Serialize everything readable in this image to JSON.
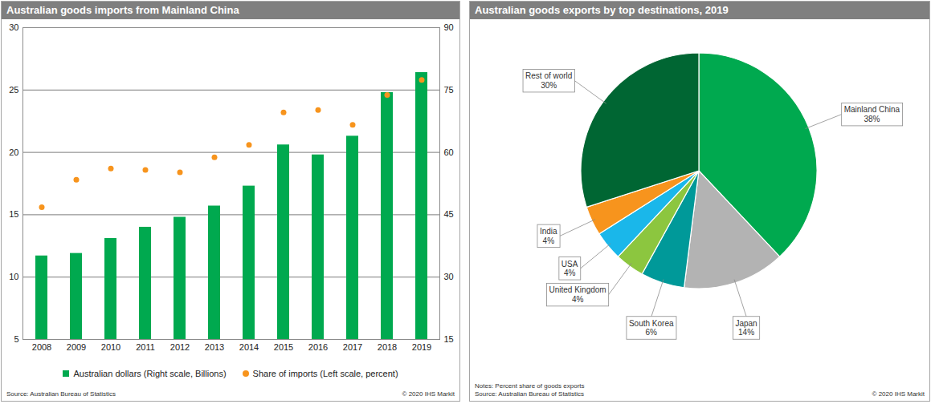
{
  "chart_data": [
    {
      "type": "bar",
      "title": "Australian goods imports from Mainland China",
      "categories": [
        "2008",
        "2009",
        "2010",
        "2011",
        "2012",
        "2013",
        "2014",
        "2015",
        "2016",
        "2017",
        "2018",
        "2019"
      ],
      "series": [
        {
          "name": "Australian dollars (Right scale, Billions)",
          "type": "bar",
          "axis": "y2",
          "color": "#00a94f",
          "values": [
            35.1,
            35.7,
            39.3,
            42.0,
            44.4,
            47.1,
            51.9,
            61.8,
            59.4,
            63.9,
            74.4,
            79.2
          ]
        },
        {
          "name": "Share of imports (Left scale, percent)",
          "type": "scatter",
          "marker": "circle",
          "color": "#f7941d",
          "values": [
            15.6,
            17.8,
            18.7,
            18.6,
            18.4,
            19.6,
            20.6,
            23.2,
            23.4,
            22.2,
            24.6,
            25.8
          ]
        }
      ],
      "ylim": [
        5,
        30
      ],
      "yticks": [
        5,
        10,
        15,
        20,
        25,
        30
      ],
      "y2lim": [
        15,
        90
      ],
      "y2ticks": [
        15,
        30,
        45,
        60,
        75,
        90
      ],
      "grid": true,
      "legend": "bottom",
      "source": "Source: Australian Bureau of Statistics",
      "copyright": "© 2020 IHS Markit"
    },
    {
      "type": "pie",
      "title": "Australian goods exports by top destinations, 2019",
      "categories": [
        "Mainland China",
        "Japan",
        "South Korea",
        "United Kingdom",
        "USA",
        "India",
        "Rest of world"
      ],
      "values": [
        38,
        14,
        6,
        4,
        4,
        4,
        30
      ],
      "value_labels": [
        "38%",
        "14%",
        "6%",
        "4%",
        "4%",
        "4%",
        "30%"
      ],
      "colors": [
        "#00a94f",
        "#b3b3b3",
        "#009999",
        "#8cc63f",
        "#1ab7ea",
        "#f7941d",
        "#006633"
      ],
      "data_labels": true,
      "notes": "Notes: Percent share of goods exports",
      "source": "Source: Australian Bureau of Statistics",
      "copyright": "© 2020 IHS Markit"
    }
  ]
}
